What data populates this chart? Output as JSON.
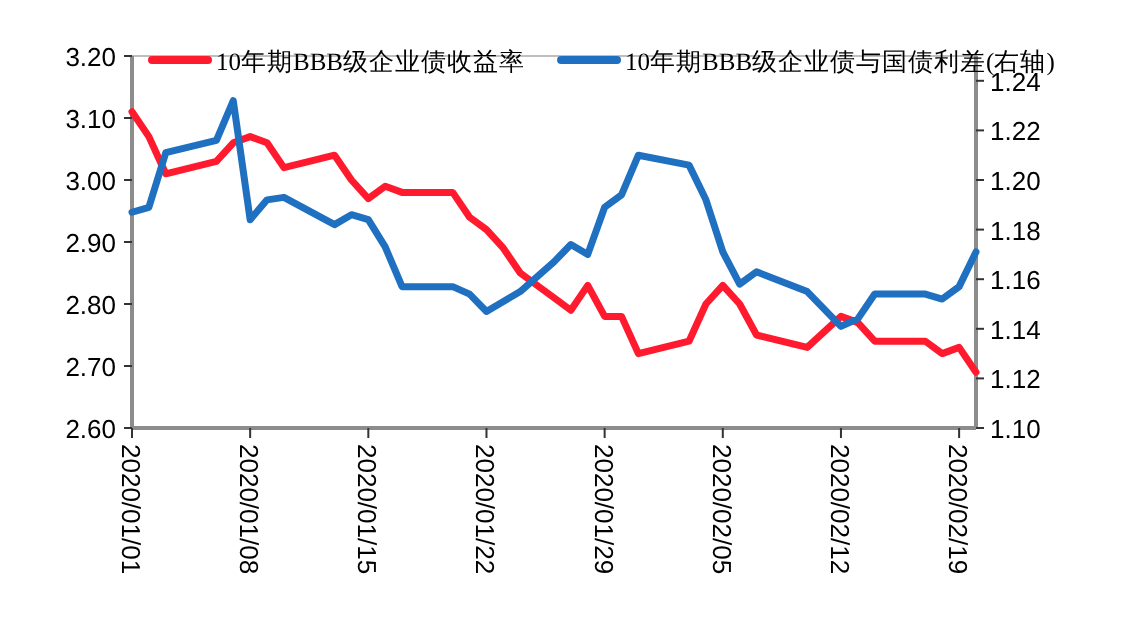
{
  "chart_data": {
    "type": "line",
    "legend": "top",
    "x": [
      "2020-01-01",
      "2020-01-02",
      "2020-01-03",
      "2020-01-06",
      "2020-01-07",
      "2020-01-08",
      "2020-01-09",
      "2020-01-10",
      "2020-01-13",
      "2020-01-14",
      "2020-01-15",
      "2020-01-16",
      "2020-01-17",
      "2020-01-20",
      "2020-01-21",
      "2020-01-22",
      "2020-01-23",
      "2020-01-24",
      "2020-01-26",
      "2020-01-27",
      "2020-01-28",
      "2020-01-29",
      "2020-01-30",
      "2020-01-31",
      "2020-02-03",
      "2020-02-04",
      "2020-02-05",
      "2020-02-06",
      "2020-02-07",
      "2020-02-10",
      "2020-02-12",
      "2020-02-13",
      "2020-02-14",
      "2020-02-17",
      "2020-02-18",
      "2020-02-19",
      "2020-02-20"
    ],
    "series": [
      {
        "name": "10年期BBB级企业债收益率",
        "color": "#ff1a2e",
        "values": [
          3.11,
          3.07,
          3.01,
          3.03,
          3.06,
          3.07,
          3.06,
          3.02,
          3.04,
          3.0,
          2.97,
          2.99,
          2.98,
          2.98,
          2.94,
          2.92,
          2.89,
          2.85,
          2.81,
          2.79,
          2.83,
          2.78,
          2.78,
          2.72,
          2.74,
          2.8,
          2.83,
          2.8,
          2.75,
          2.73,
          2.78,
          2.77,
          2.74,
          2.74,
          2.72,
          2.73,
          2.69
        ]
      },
      {
        "name": "10年期BBB级企业债与国债利差(右轴)",
        "color": "#1f70c1",
        "axis": "y2",
        "values": [
          1.187,
          1.189,
          1.211,
          1.216,
          1.232,
          1.184,
          1.192,
          1.193,
          1.182,
          1.186,
          1.184,
          1.173,
          1.157,
          1.157,
          1.154,
          1.147,
          1.151,
          1.155,
          1.167,
          1.174,
          1.17,
          1.189,
          1.194,
          1.21,
          1.206,
          1.192,
          1.171,
          1.158,
          1.163,
          1.155,
          1.141,
          1.144,
          1.154,
          1.154,
          1.152,
          1.157,
          1.171
        ]
      }
    ],
    "xlim": [
      "2020-01-01",
      "2020-02-20"
    ],
    "xticks": [
      {
        "value": "2020-01-01",
        "label": "2020/01/01"
      },
      {
        "value": "2020-01-08",
        "label": "2020/01/08"
      },
      {
        "value": "2020-01-15",
        "label": "2020/01/15"
      },
      {
        "value": "2020-01-22",
        "label": "2020/01/22"
      },
      {
        "value": "2020-01-29",
        "label": "2020/01/29"
      },
      {
        "value": "2020-02-05",
        "label": "2020/02/05"
      },
      {
        "value": "2020-02-12",
        "label": "2020/02/12"
      },
      {
        "value": "2020-02-19",
        "label": "2020/02/19"
      }
    ],
    "ylim": [
      2.6,
      3.2
    ],
    "yticks": [
      {
        "value": 2.6,
        "label": "2.60"
      },
      {
        "value": 2.7,
        "label": "2.70"
      },
      {
        "value": 2.8,
        "label": "2.80"
      },
      {
        "value": 2.9,
        "label": "2.90"
      },
      {
        "value": 3.0,
        "label": "3.00"
      },
      {
        "value": 3.1,
        "label": "3.10"
      },
      {
        "value": 3.2,
        "label": "3.20"
      }
    ],
    "y2lim": [
      1.1,
      1.25
    ],
    "y2ticks": [
      {
        "value": 1.1,
        "label": "1.10"
      },
      {
        "value": 1.12,
        "label": "1.12"
      },
      {
        "value": 1.14,
        "label": "1.14"
      },
      {
        "value": 1.16,
        "label": "1.16"
      },
      {
        "value": 1.18,
        "label": "1.18"
      },
      {
        "value": 1.2,
        "label": "1.20"
      },
      {
        "value": 1.22,
        "label": "1.22"
      },
      {
        "value": 1.24,
        "label": "1.24"
      }
    ]
  }
}
